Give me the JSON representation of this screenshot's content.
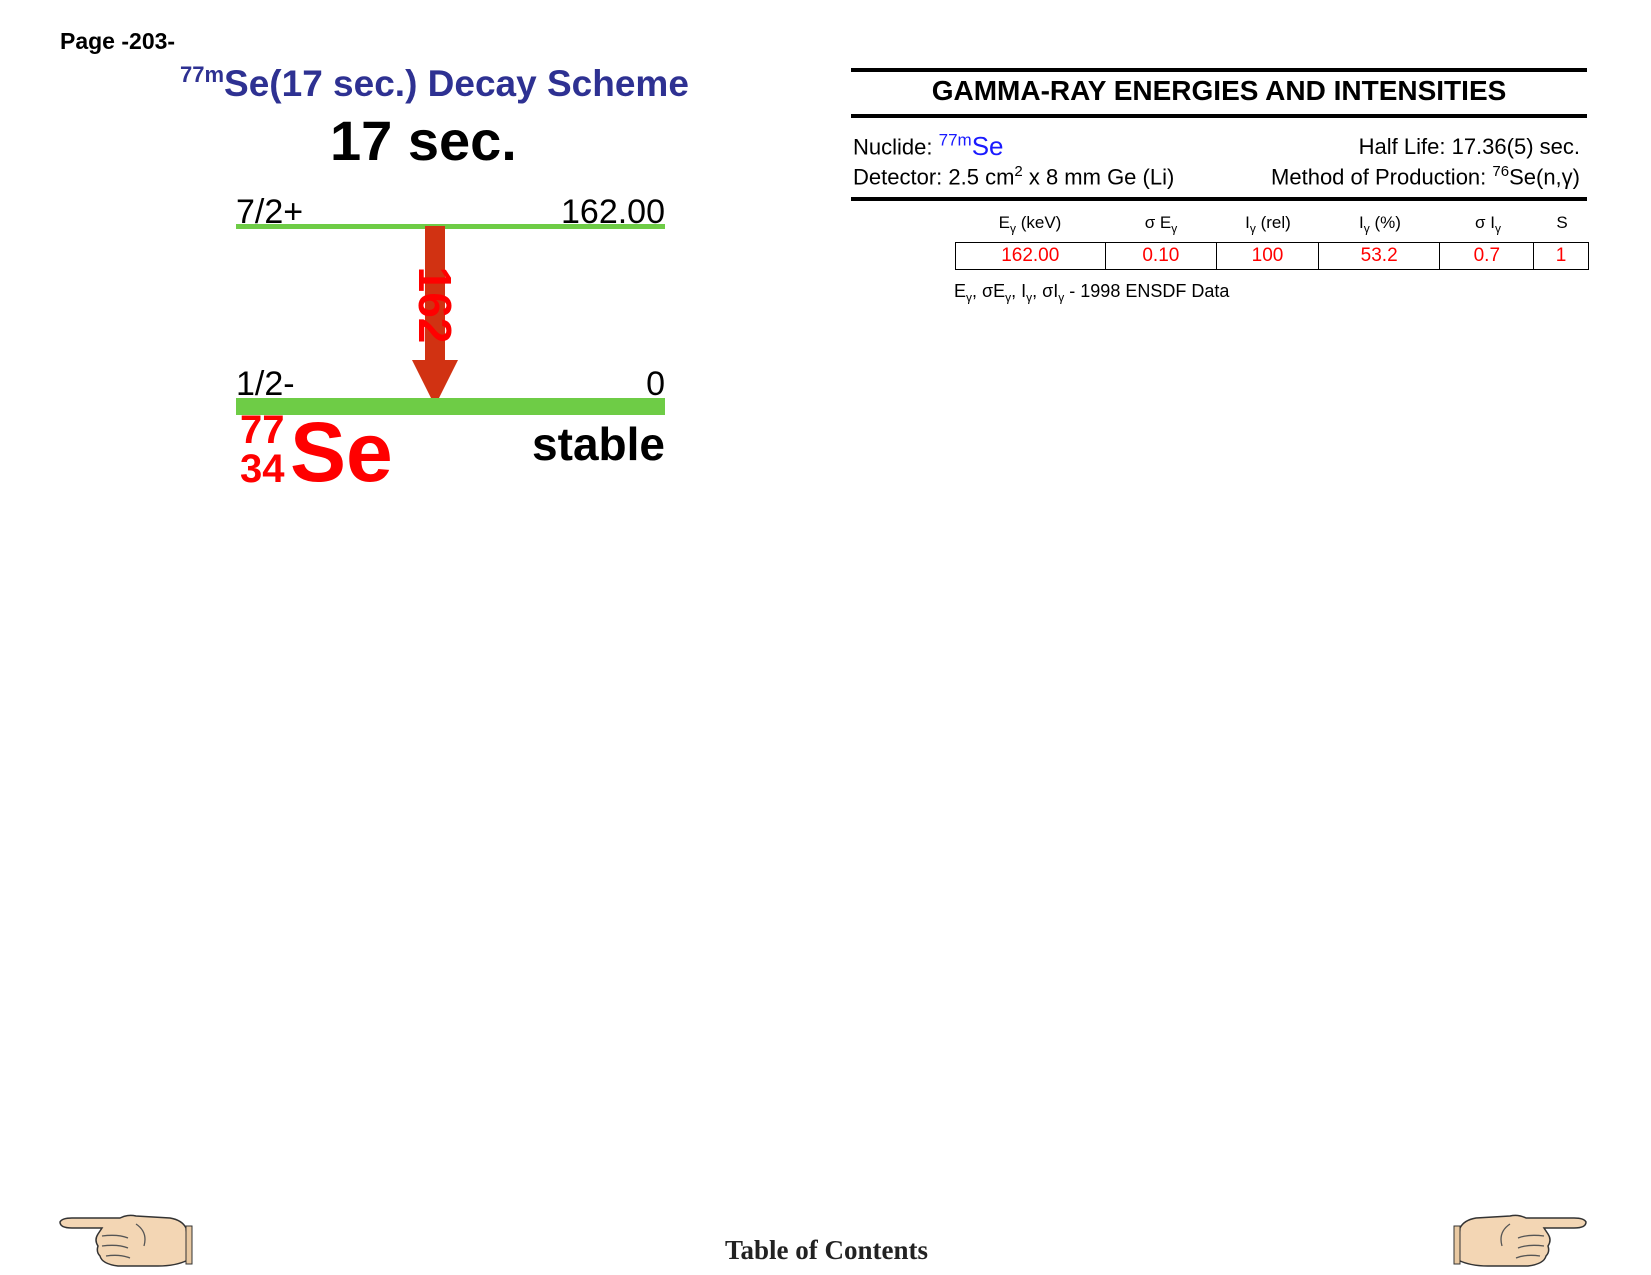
{
  "page": {
    "number_label": "Page -203-"
  },
  "scheme": {
    "title_sup": "77m",
    "title_rest": "Se(17 sec.) Decay Scheme",
    "half_life": "17 sec.",
    "upper_level": {
      "spin": "7/2+",
      "energy": "162.00"
    },
    "lower_level": {
      "spin": "1/2-",
      "energy": "0"
    },
    "gamma_label": "162",
    "nuclide": {
      "mass": "77",
      "z": "34",
      "symbol": "Se",
      "status": "stable"
    },
    "colors": {
      "level": "#6ecc46",
      "gamma_arrow": "#d13212",
      "nuclide": "#ff0000",
      "title": "#2e3192"
    }
  },
  "gamma_table": {
    "title": "GAMMA-RAY ENERGIES AND INTENSITIES",
    "nuclide_label": "Nuclide:",
    "nuclide_sup": "77m",
    "nuclide_symbol": "Se",
    "half_life": "Half Life: 17.36(5) sec.",
    "detector_a": "Detector: 2.5 cm",
    "detector_sup": "2",
    "detector_b": " x 8 mm Ge (Li)",
    "production_a": "Method of Production: ",
    "production_sup": "76",
    "production_b": "Se(n,γ)",
    "columns": [
      {
        "main": "E",
        "sub": "γ",
        "tail": " (keV)"
      },
      {
        "main": "σ E",
        "sub": "γ",
        "tail": ""
      },
      {
        "main": "I",
        "sub": "γ",
        "tail": " (rel)"
      },
      {
        "main": "I",
        "sub": "γ",
        "tail": " (%)"
      },
      {
        "main": "σ I",
        "sub": "γ",
        "tail": ""
      },
      {
        "main": "S",
        "sub": "",
        "tail": ""
      }
    ],
    "rows": [
      [
        "162.00",
        "0.10",
        "100",
        "53.2",
        "0.7",
        "1"
      ]
    ],
    "source_note_tail": "1998 ENSDF Data"
  },
  "footer": {
    "toc_label": "Table of Contents",
    "left_icon": "pointing-hand-left-icon",
    "right_icon": "pointing-hand-right-icon"
  }
}
